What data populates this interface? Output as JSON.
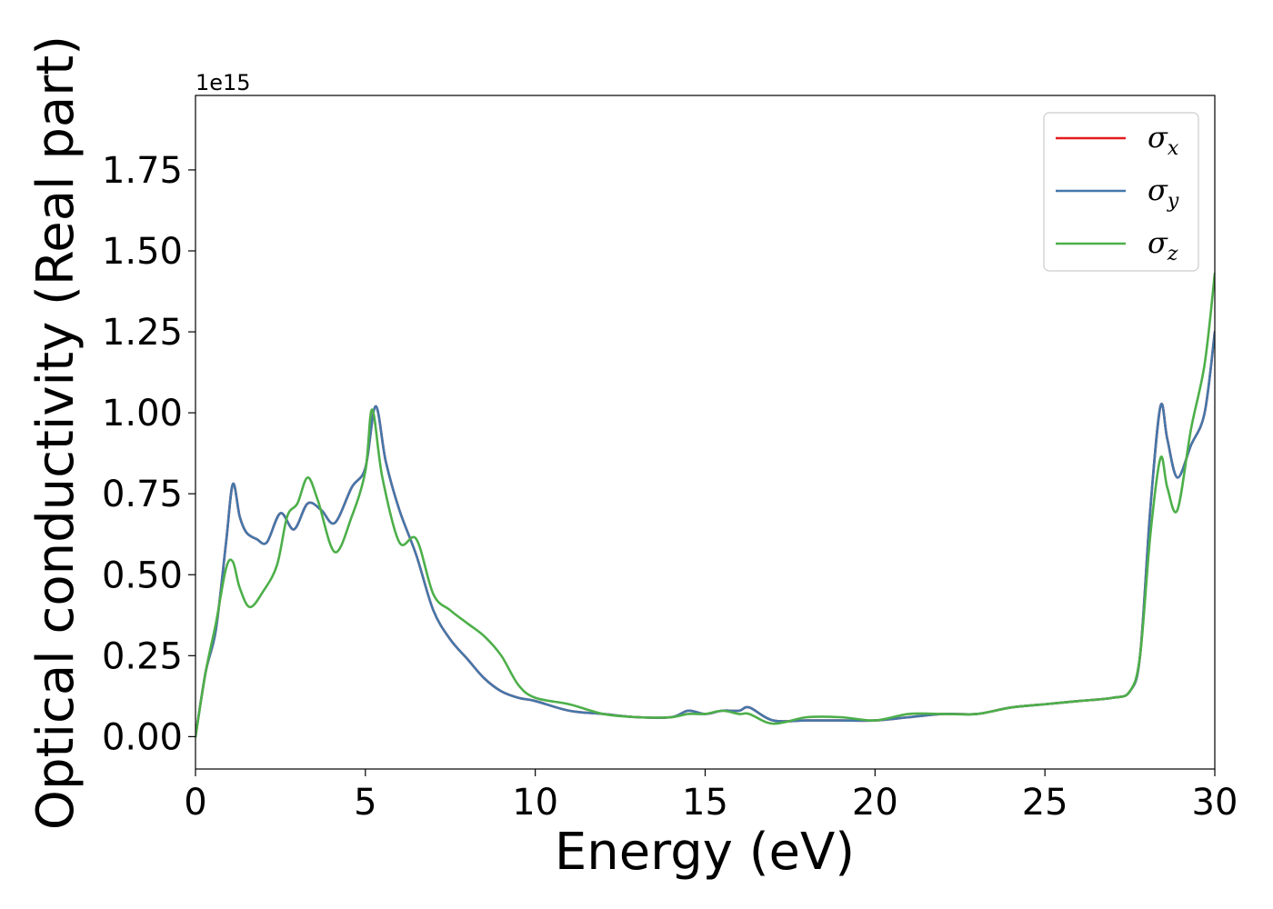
{
  "chart_data": {
    "type": "line",
    "title": "",
    "xlabel": "Energy (eV)",
    "ylabel": "Optical conductivity (Real part)",
    "y_offset_text": "1e15",
    "xlim": [
      0,
      30
    ],
    "ylim": [
      -0.1,
      1.98
    ],
    "x_ticks": [
      0,
      5,
      10,
      15,
      20,
      25,
      30
    ],
    "x_tick_labels": [
      "0",
      "5",
      "10",
      "15",
      "20",
      "25",
      "30"
    ],
    "y_ticks": [
      0.0,
      0.25,
      0.5,
      0.75,
      1.0,
      1.25,
      1.5,
      1.75
    ],
    "y_tick_labels": [
      "0.00",
      "0.25",
      "0.50",
      "0.75",
      "1.00",
      "1.25",
      "1.50",
      "1.75"
    ],
    "grid": false,
    "legend_position": "top-right",
    "series": [
      {
        "name": "σx",
        "legend_symbol": "σ",
        "legend_subscript": "x",
        "color": "#e41a1c",
        "x": [
          0,
          0.3,
          0.6,
          0.9,
          1.1,
          1.3,
          1.5,
          1.8,
          2.1,
          2.5,
          2.9,
          3.3,
          3.7,
          4.1,
          4.6,
          5.0,
          5.3,
          5.6,
          6.0,
          6.5,
          7.0,
          7.5,
          8.0,
          8.5,
          9.0,
          9.5,
          10.0,
          11.0,
          12.0,
          13.0,
          14.0,
          14.5,
          15.0,
          15.5,
          16.0,
          16.3,
          17.0,
          18.0,
          19.0,
          20.0,
          21.0,
          22.0,
          23.0,
          24.0,
          25.0,
          26.0,
          27.0,
          27.5,
          27.8,
          28.1,
          28.4,
          28.6,
          28.9,
          29.3,
          29.7,
          30.0
        ],
        "values": [
          0.0,
          0.2,
          0.33,
          0.6,
          0.78,
          0.68,
          0.63,
          0.61,
          0.6,
          0.69,
          0.64,
          0.72,
          0.7,
          0.66,
          0.77,
          0.83,
          1.02,
          0.85,
          0.7,
          0.56,
          0.39,
          0.3,
          0.24,
          0.18,
          0.14,
          0.12,
          0.11,
          0.08,
          0.07,
          0.06,
          0.06,
          0.08,
          0.07,
          0.08,
          0.08,
          0.09,
          0.05,
          0.05,
          0.05,
          0.05,
          0.06,
          0.07,
          0.07,
          0.09,
          0.1,
          0.11,
          0.12,
          0.14,
          0.25,
          0.7,
          1.02,
          0.92,
          0.8,
          0.9,
          1.0,
          1.25
        ]
      },
      {
        "name": "σy",
        "legend_symbol": "σ",
        "legend_subscript": "y",
        "color": "#4477aa",
        "x": [
          0,
          0.3,
          0.6,
          0.9,
          1.1,
          1.3,
          1.5,
          1.8,
          2.1,
          2.5,
          2.9,
          3.3,
          3.7,
          4.1,
          4.6,
          5.0,
          5.3,
          5.6,
          6.0,
          6.5,
          7.0,
          7.5,
          8.0,
          8.5,
          9.0,
          9.5,
          10.0,
          11.0,
          12.0,
          13.0,
          14.0,
          14.5,
          15.0,
          15.5,
          16.0,
          16.3,
          17.0,
          18.0,
          19.0,
          20.0,
          21.0,
          22.0,
          23.0,
          24.0,
          25.0,
          26.0,
          27.0,
          27.5,
          27.8,
          28.1,
          28.4,
          28.6,
          28.9,
          29.3,
          29.7,
          30.0
        ],
        "values": [
          0.0,
          0.2,
          0.33,
          0.6,
          0.78,
          0.68,
          0.63,
          0.61,
          0.6,
          0.69,
          0.64,
          0.72,
          0.7,
          0.66,
          0.77,
          0.83,
          1.02,
          0.85,
          0.7,
          0.56,
          0.39,
          0.3,
          0.24,
          0.18,
          0.14,
          0.12,
          0.11,
          0.08,
          0.07,
          0.06,
          0.06,
          0.08,
          0.07,
          0.08,
          0.08,
          0.09,
          0.05,
          0.05,
          0.05,
          0.05,
          0.06,
          0.07,
          0.07,
          0.09,
          0.1,
          0.11,
          0.12,
          0.14,
          0.25,
          0.7,
          1.02,
          0.92,
          0.8,
          0.9,
          1.0,
          1.25
        ]
      },
      {
        "name": "σz",
        "legend_symbol": "σ",
        "legend_subscript": "z",
        "color": "#4daf4a",
        "x": [
          0,
          0.3,
          0.6,
          0.9,
          1.1,
          1.3,
          1.6,
          2.0,
          2.4,
          2.7,
          3.0,
          3.3,
          3.6,
          4.1,
          4.6,
          5.0,
          5.2,
          5.5,
          6.0,
          6.5,
          7.0,
          7.5,
          8.0,
          8.5,
          9.0,
          9.5,
          10.0,
          11.0,
          12.0,
          13.0,
          14.0,
          14.5,
          15.0,
          15.5,
          16.0,
          16.3,
          17.0,
          18.0,
          19.0,
          20.0,
          21.0,
          22.0,
          23.0,
          24.0,
          25.0,
          26.0,
          27.0,
          27.5,
          27.8,
          28.1,
          28.4,
          28.6,
          28.9,
          29.3,
          29.7,
          30.0
        ],
        "values": [
          0.0,
          0.2,
          0.35,
          0.52,
          0.54,
          0.46,
          0.4,
          0.45,
          0.53,
          0.68,
          0.72,
          0.8,
          0.73,
          0.57,
          0.68,
          0.82,
          1.01,
          0.8,
          0.6,
          0.61,
          0.44,
          0.39,
          0.35,
          0.31,
          0.25,
          0.16,
          0.12,
          0.1,
          0.07,
          0.06,
          0.06,
          0.07,
          0.07,
          0.08,
          0.07,
          0.07,
          0.04,
          0.06,
          0.06,
          0.05,
          0.07,
          0.07,
          0.07,
          0.09,
          0.1,
          0.11,
          0.12,
          0.14,
          0.25,
          0.62,
          0.86,
          0.77,
          0.7,
          0.95,
          1.15,
          1.43
        ]
      }
    ]
  }
}
